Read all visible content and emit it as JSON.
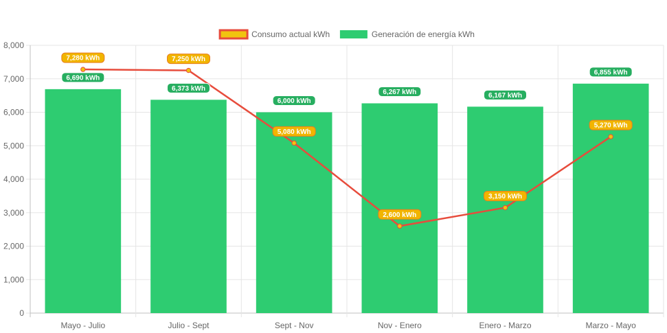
{
  "chart_data": {
    "type": "bar",
    "categories": [
      "Mayo - Julio",
      "Julio - Sept",
      "Sept - Nov",
      "Nov - Enero",
      "Enero - Marzo",
      "Marzo - Mayo"
    ],
    "ylim": [
      0,
      8000
    ],
    "yticks": [
      0,
      1000,
      2000,
      3000,
      4000,
      5000,
      6000,
      7000,
      8000
    ],
    "ytick_labels": [
      "0",
      "1,000",
      "2,000",
      "3,000",
      "4,000",
      "5,000",
      "6,000",
      "7,000",
      "8,000"
    ],
    "grid": true,
    "legend_position": "top",
    "series": [
      {
        "name": "Consumo actual kWh",
        "type": "line",
        "values": [
          7280,
          7250,
          5080,
          2600,
          3150,
          5270
        ],
        "labels": [
          "7,280 kWh",
          "7,250 kWh",
          "5,080 kWh",
          "2,600 kWh",
          "3,150 kWh",
          "5,270 kWh"
        ],
        "color": "#e74c3c",
        "fill_color": "#f1c40f",
        "label_background": "#f1b500",
        "label_border": "#e67e22"
      },
      {
        "name": "Generación de energía kWh",
        "type": "bar",
        "values": [
          6690,
          6373,
          6000,
          6267,
          6167,
          6855
        ],
        "labels": [
          "6,690 kWh",
          "6,373 kWh",
          "6,000 kWh",
          "6,267 kWh",
          "6,167 kWh",
          "6,855 kWh"
        ],
        "color": "#2ecc71",
        "label_background": "#27ae60"
      }
    ]
  }
}
